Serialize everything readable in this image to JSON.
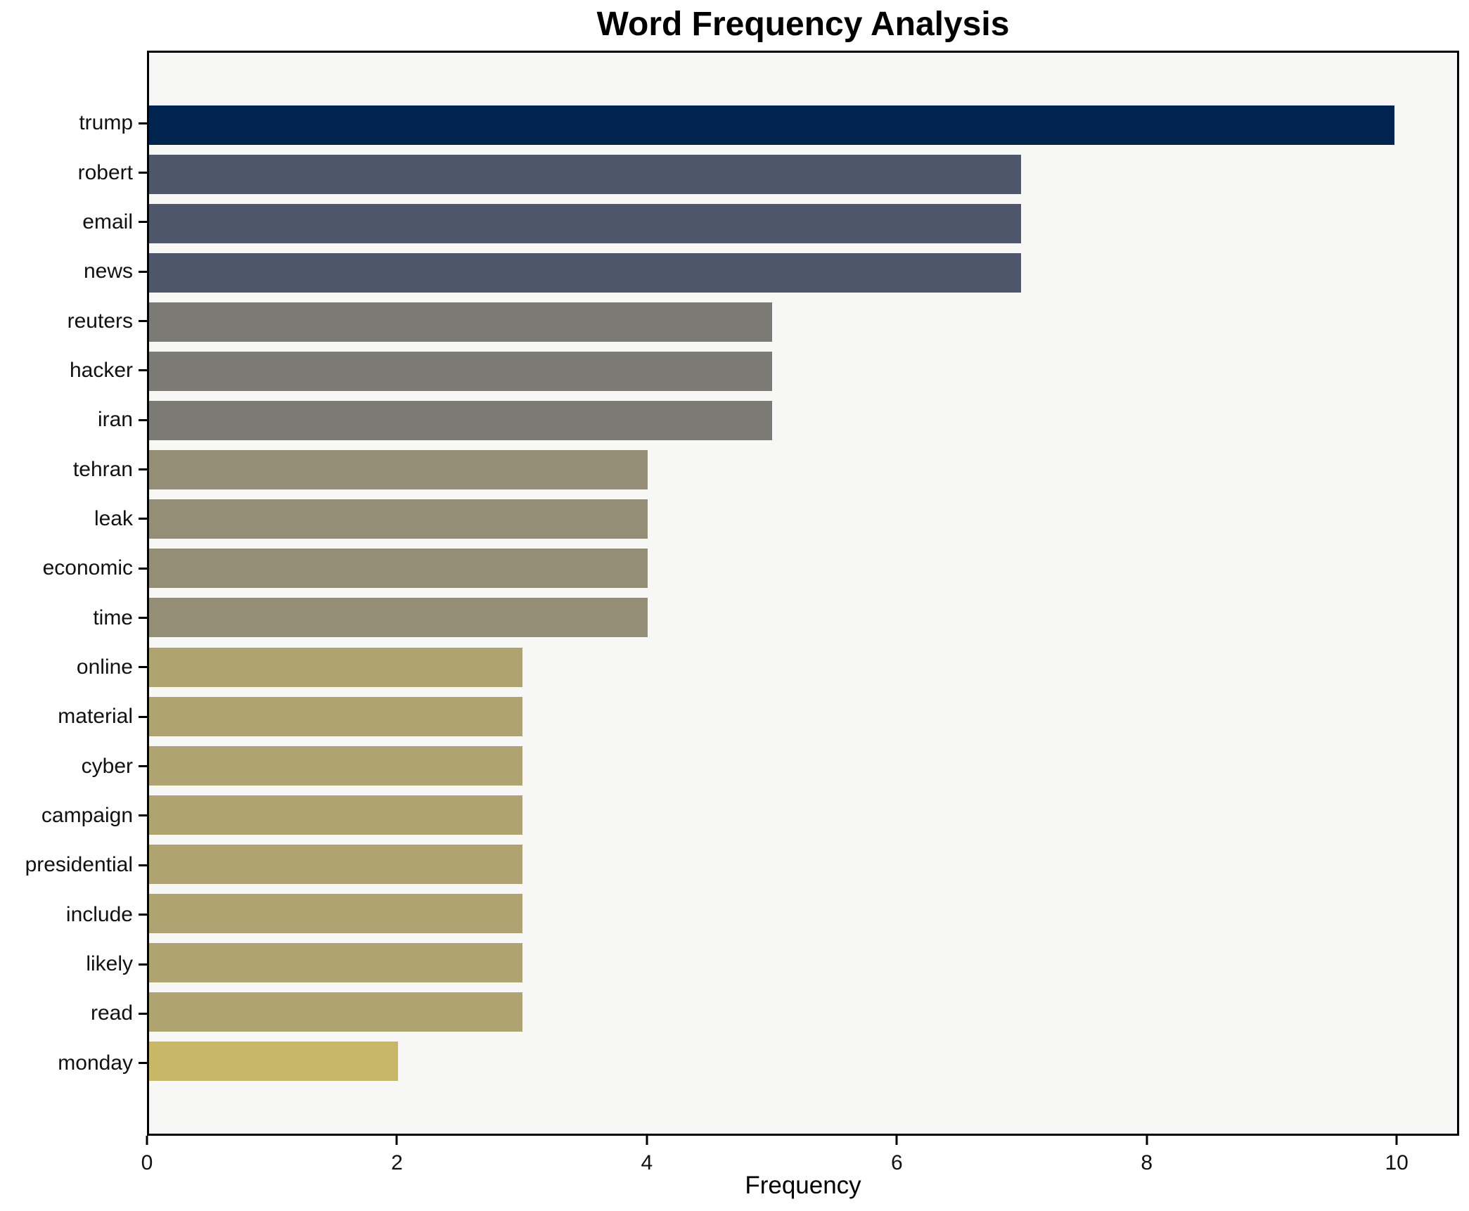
{
  "chart_data": {
    "type": "bar",
    "orientation": "horizontal",
    "title": "Word Frequency Analysis",
    "xlabel": "Frequency",
    "ylabel": "",
    "categories": [
      "trump",
      "robert",
      "email",
      "news",
      "reuters",
      "hacker",
      "iran",
      "tehran",
      "leak",
      "economic",
      "time",
      "online",
      "material",
      "cyber",
      "campaign",
      "presidential",
      "include",
      "likely",
      "read",
      "monday"
    ],
    "values": [
      10,
      7,
      7,
      7,
      5,
      5,
      5,
      4,
      4,
      4,
      4,
      3,
      3,
      3,
      3,
      3,
      3,
      3,
      3,
      2
    ],
    "bar_colors": [
      "#012350",
      "#4d566b",
      "#4d566b",
      "#4d566b",
      "#7b7a75",
      "#7b7a75",
      "#7b7a75",
      "#948e76",
      "#948e76",
      "#948e76",
      "#948e76",
      "#aea371",
      "#aea371",
      "#aea371",
      "#aea371",
      "#aea371",
      "#aea371",
      "#aea371",
      "#aea371",
      "#c8b766"
    ],
    "xlim": [
      0,
      10.5
    ],
    "xticks": [
      0,
      2,
      4,
      6,
      8,
      10
    ],
    "xtick_labels": [
      "0",
      "2",
      "4",
      "6",
      "8",
      "10"
    ],
    "grid": false,
    "legend": "none",
    "plot_background": "#f7f7f5",
    "figure_background": "#ffffff",
    "spine_color": "#000000"
  }
}
